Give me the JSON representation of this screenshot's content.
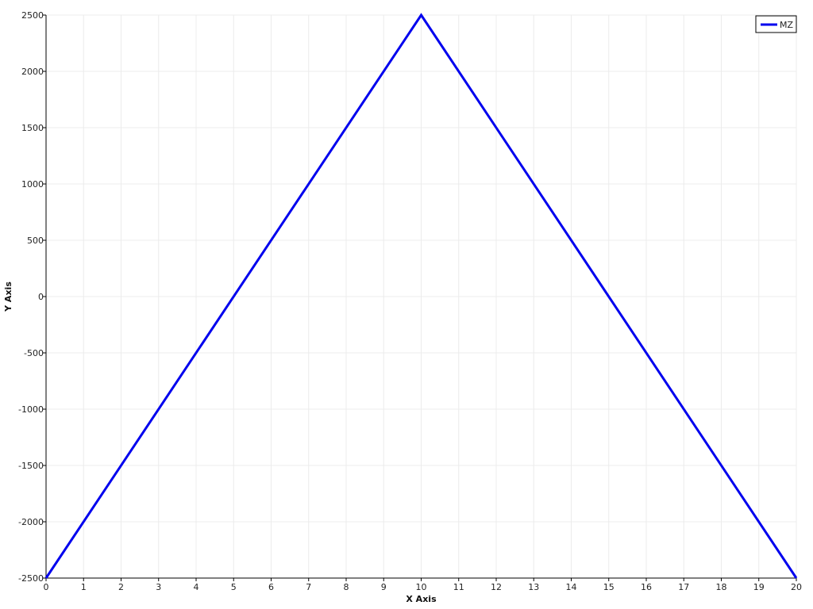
{
  "chart_data": {
    "type": "line",
    "xlabel": "X Axis",
    "ylabel": "Y Axis",
    "xlim": [
      0,
      20
    ],
    "ylim": [
      -2500,
      2500
    ],
    "xticks": [
      0,
      1,
      2,
      3,
      4,
      5,
      6,
      7,
      8,
      9,
      10,
      11,
      12,
      13,
      14,
      15,
      16,
      17,
      18,
      19,
      20
    ],
    "yticks": [
      -2500,
      -2000,
      -1500,
      -1000,
      -500,
      0,
      500,
      1000,
      1500,
      2000,
      2500
    ],
    "grid": true,
    "legend_position": "top-right",
    "series": [
      {
        "name": "MZ",
        "color": "#0000ee",
        "x": [
          0,
          10,
          20
        ],
        "y": [
          -2500,
          2500,
          -2500
        ]
      }
    ]
  }
}
